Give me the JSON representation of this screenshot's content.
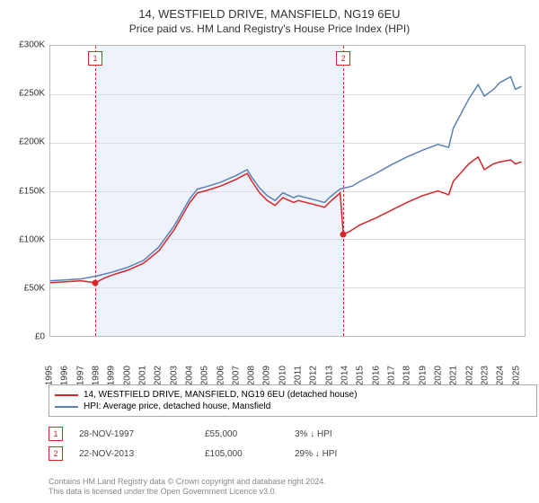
{
  "title": "14, WESTFIELD DRIVE, MANSFIELD, NG19 6EU",
  "subtitle": "Price paid vs. HM Land Registry's House Price Index (HPI)",
  "chart": {
    "type": "line",
    "background_color": "#ffffff",
    "shaded_band_color": "#eef2fa",
    "grid_color": "#dddddd",
    "border_color": "#bbbbbb",
    "x_years": [
      1995,
      1996,
      1997,
      1998,
      1999,
      2000,
      2001,
      2002,
      2003,
      2004,
      2005,
      2006,
      2007,
      2008,
      2009,
      2010,
      2011,
      2012,
      2013,
      2014,
      2015,
      2016,
      2017,
      2018,
      2019,
      2020,
      2021,
      2022,
      2023,
      2024,
      2025
    ],
    "xlim": [
      1995,
      2025.6
    ],
    "ylim": [
      0,
      300000
    ],
    "ytick_step": 50000,
    "ytick_labels": [
      "£0",
      "£50K",
      "£100K",
      "£150K",
      "£200K",
      "£250K",
      "£300K"
    ],
    "label_fontsize": 10,
    "line_width": 1.5,
    "shaded_range": [
      1997.9,
      2013.9
    ],
    "series": [
      {
        "name": "14, WESTFIELD DRIVE, MANSFIELD, NG19 6EU (detached house)",
        "color": "#d62728",
        "points": [
          [
            1995,
            55000
          ],
          [
            1996,
            56000
          ],
          [
            1997,
            57000
          ],
          [
            1997.9,
            55000
          ],
          [
            1998.5,
            60000
          ],
          [
            1999,
            63000
          ],
          [
            2000,
            68000
          ],
          [
            2001,
            75000
          ],
          [
            2002,
            88000
          ],
          [
            2003,
            110000
          ],
          [
            2004,
            138000
          ],
          [
            2004.5,
            148000
          ],
          [
            2005,
            150000
          ],
          [
            2006,
            155000
          ],
          [
            2007,
            162000
          ],
          [
            2007.7,
            168000
          ],
          [
            2008,
            160000
          ],
          [
            2008.5,
            148000
          ],
          [
            2009,
            140000
          ],
          [
            2009.5,
            135000
          ],
          [
            2010,
            143000
          ],
          [
            2010.7,
            138000
          ],
          [
            2011,
            140000
          ],
          [
            2012,
            136000
          ],
          [
            2012.7,
            133000
          ],
          [
            2013,
            138000
          ],
          [
            2013.7,
            148000
          ],
          [
            2013.9,
            105000
          ],
          [
            2014.3,
            108000
          ],
          [
            2015,
            115000
          ],
          [
            2016,
            122000
          ],
          [
            2017,
            130000
          ],
          [
            2018,
            138000
          ],
          [
            2019,
            145000
          ],
          [
            2020,
            150000
          ],
          [
            2020.7,
            146000
          ],
          [
            2021,
            160000
          ],
          [
            2022,
            178000
          ],
          [
            2022.6,
            185000
          ],
          [
            2023,
            172000
          ],
          [
            2023.6,
            178000
          ],
          [
            2024,
            180000
          ],
          [
            2024.7,
            182000
          ],
          [
            2025,
            178000
          ],
          [
            2025.4,
            180000
          ]
        ]
      },
      {
        "name": "HPI: Average price, detached house, Mansfield",
        "color": "#5b7fb8",
        "points": [
          [
            1995,
            57000
          ],
          [
            1996,
            58000
          ],
          [
            1997,
            59000
          ],
          [
            1998,
            62000
          ],
          [
            1999,
            66000
          ],
          [
            2000,
            71000
          ],
          [
            2001,
            78000
          ],
          [
            2002,
            92000
          ],
          [
            2003,
            114000
          ],
          [
            2004,
            142000
          ],
          [
            2004.5,
            152000
          ],
          [
            2005,
            154000
          ],
          [
            2006,
            159000
          ],
          [
            2007,
            166000
          ],
          [
            2007.7,
            172000
          ],
          [
            2008,
            164000
          ],
          [
            2008.5,
            153000
          ],
          [
            2009,
            145000
          ],
          [
            2009.5,
            140000
          ],
          [
            2010,
            148000
          ],
          [
            2010.7,
            143000
          ],
          [
            2011,
            145000
          ],
          [
            2012,
            141000
          ],
          [
            2012.7,
            138000
          ],
          [
            2013,
            143000
          ],
          [
            2013.7,
            152000
          ],
          [
            2014,
            153000
          ],
          [
            2014.5,
            155000
          ],
          [
            2015,
            160000
          ],
          [
            2016,
            168000
          ],
          [
            2017,
            177000
          ],
          [
            2018,
            185000
          ],
          [
            2019,
            192000
          ],
          [
            2020,
            198000
          ],
          [
            2020.7,
            195000
          ],
          [
            2021,
            215000
          ],
          [
            2022,
            245000
          ],
          [
            2022.6,
            260000
          ],
          [
            2023,
            248000
          ],
          [
            2023.6,
            255000
          ],
          [
            2024,
            262000
          ],
          [
            2024.7,
            268000
          ],
          [
            2025,
            255000
          ],
          [
            2025.4,
            258000
          ]
        ]
      }
    ],
    "markers": [
      {
        "x": 1997.9,
        "y": 55000,
        "color": "#d62728"
      },
      {
        "x": 2013.9,
        "y": 105000,
        "color": "#d62728"
      }
    ],
    "events": [
      {
        "num": "1",
        "x": 1997.9,
        "color": "#d62728",
        "date": "28-NOV-1997",
        "price": "£55,000",
        "diff": "3% ↓ HPI"
      },
      {
        "num": "2",
        "x": 2013.9,
        "color": "#d62728",
        "date": "22-NOV-2013",
        "price": "£105,000",
        "diff": "29% ↓ HPI"
      }
    ]
  },
  "legend": {
    "border_color": "#aaaaaa"
  },
  "footer": {
    "line1": "Contains HM Land Registry data © Crown copyright and database right 2024.",
    "line2": "This data is licensed under the Open Government Licence v3.0."
  }
}
